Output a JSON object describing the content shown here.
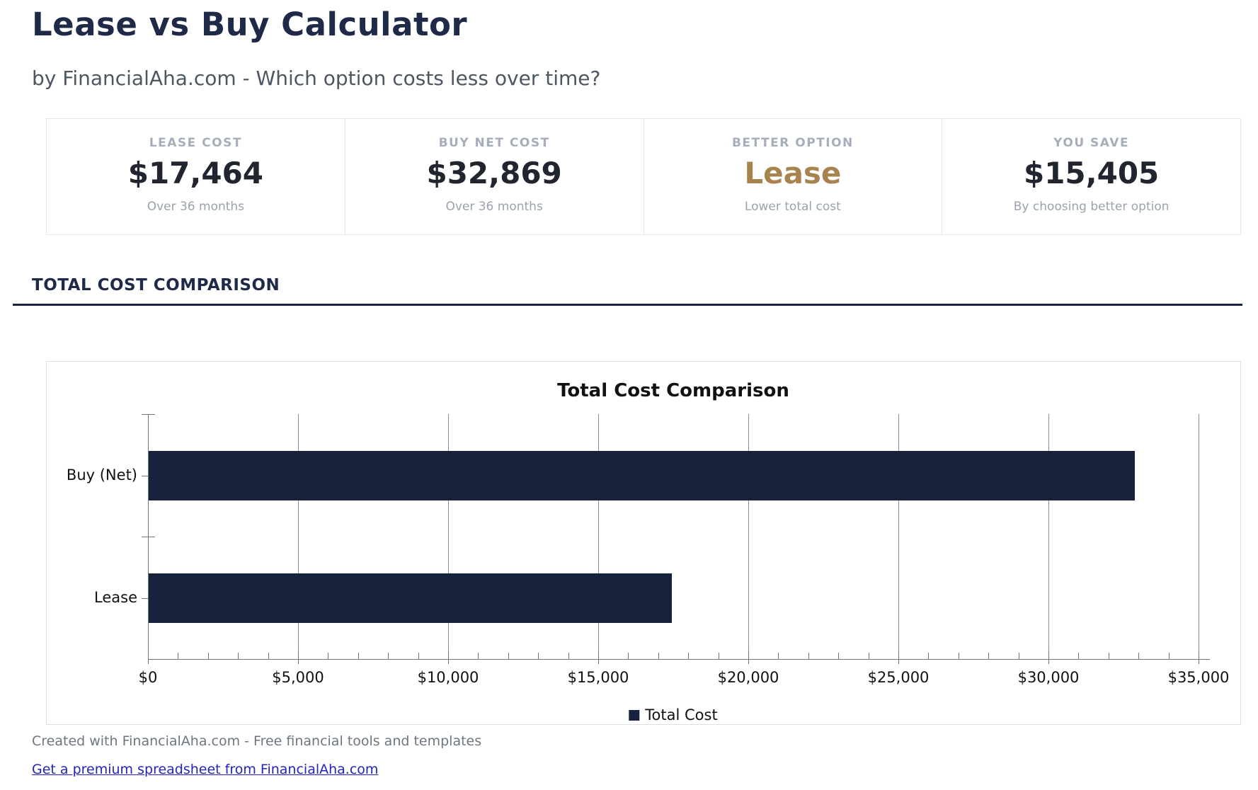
{
  "page": {
    "title": "Lease vs Buy Calculator",
    "subtitle": "by FinancialAha.com - Which option costs less over time?"
  },
  "stats": [
    {
      "label": "LEASE COST",
      "value": "$17,464",
      "sub": "Over 36 months"
    },
    {
      "label": "BUY NET COST",
      "value": "$32,869",
      "sub": "Over 36 months"
    },
    {
      "label": "BETTER OPTION",
      "value": "Lease",
      "sub": "Lower total cost",
      "value_color": "#a8834e"
    },
    {
      "label": "YOU SAVE",
      "value": "$15,405",
      "sub": "By choosing better option"
    }
  ],
  "section": {
    "title": "TOTAL COST COMPARISON"
  },
  "chart_data": {
    "type": "bar",
    "orientation": "horizontal",
    "title": "Total Cost Comparison",
    "categories": [
      "Buy (Net)",
      "Lease"
    ],
    "values": [
      32869,
      17464
    ],
    "series_name": "Total Cost",
    "bar_color": "#17233c",
    "x_axis": {
      "min": 0,
      "max": 35000,
      "major_tick_step": 5000,
      "minor_tick_step": 1000,
      "tick_labels": [
        "$0",
        "$5,000",
        "$10,000",
        "$15,000",
        "$20,000",
        "$25,000",
        "$30,000",
        "$35,000"
      ]
    },
    "grid": true,
    "legend_position": "bottom"
  },
  "footer": {
    "credit": "Created with FinancialAha.com - Free financial tools and templates",
    "link_text": "Get a premium spreadsheet from FinancialAha.com"
  },
  "colors": {
    "heading_navy": "#1e2a47",
    "accent_gold": "#a8834e",
    "bar_navy": "#17233c",
    "grid_gray": "#8a8f96",
    "link_blue": "#2424bd"
  }
}
